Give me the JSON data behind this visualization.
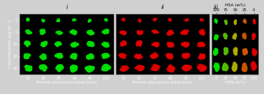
{
  "fig_bg": "#d0d0d0",
  "panel_bg": "#000000",
  "panel_i": {
    "label": "i",
    "rows": 5,
    "cols": 6,
    "color": "#00dd00",
    "x_ticks": [
      "10",
      "20",
      "30",
      "60",
      "90",
      "120"
    ],
    "y_ticks": [
      "1",
      "5",
      "10",
      "20",
      "50"
    ],
    "xlabel": "Protein adsorption time (min)",
    "ylabel": "Concentration (μg.ml⁻¹)",
    "sizes": [
      [
        0.22,
        0.2,
        0.22,
        0.2,
        0.22,
        0.2
      ],
      [
        0.38,
        0.42,
        0.35,
        0.44,
        0.46,
        0.44
      ],
      [
        0.44,
        0.46,
        0.42,
        0.48,
        0.5,
        0.48
      ],
      [
        0.46,
        0.48,
        0.5,
        0.5,
        0.52,
        0.5
      ],
      [
        0.52,
        0.54,
        0.56,
        0.58,
        0.6,
        0.62
      ]
    ],
    "roughness": [
      [
        0.5,
        0.55,
        0.52,
        0.5,
        0.48,
        0.45
      ],
      [
        0.35,
        0.32,
        0.38,
        0.28,
        0.22,
        0.25
      ],
      [
        0.3,
        0.28,
        0.32,
        0.22,
        0.18,
        0.2
      ],
      [
        0.28,
        0.25,
        0.22,
        0.2,
        0.18,
        0.2
      ],
      [
        0.28,
        0.26,
        0.24,
        0.22,
        0.2,
        0.18
      ]
    ]
  },
  "panel_ii": {
    "label": "ii",
    "rows": 5,
    "cols": 6,
    "color": "#dd0000",
    "x_ticks": [
      "10",
      "20",
      "30",
      "60",
      "90",
      "120"
    ],
    "xlabel": "Protein adsorption time (min)",
    "sizes": [
      [
        0.22,
        0.2,
        0.22,
        0.2,
        0.22,
        0.2
      ],
      [
        0.38,
        0.4,
        0.35,
        0.44,
        0.46,
        0.44
      ],
      [
        0.44,
        0.46,
        0.42,
        0.48,
        0.5,
        0.48
      ],
      [
        0.46,
        0.48,
        0.5,
        0.5,
        0.52,
        0.5
      ],
      [
        0.52,
        0.54,
        0.56,
        0.58,
        0.6,
        0.62
      ]
    ],
    "roughness": [
      [
        0.5,
        0.55,
        0.52,
        0.5,
        0.48,
        0.45
      ],
      [
        0.35,
        0.32,
        0.38,
        0.28,
        0.35,
        0.25
      ],
      [
        0.3,
        0.28,
        0.42,
        0.22,
        0.18,
        0.2
      ],
      [
        0.28,
        0.25,
        0.22,
        0.2,
        0.18,
        0.2
      ],
      [
        0.28,
        0.26,
        0.24,
        0.22,
        0.2,
        0.18
      ]
    ]
  },
  "panel_iii": {
    "label": "iii",
    "rows": 4,
    "cols": 5,
    "x_ticks": [
      "0",
      "25",
      "50",
      "75",
      "100"
    ],
    "x_ticks_top": [
      "100",
      "75",
      "50",
      "25",
      "0"
    ],
    "xlabel": "HFN (w%)",
    "xlabel_top": "HSA (w%)",
    "col_colors": [
      "#00dd00",
      "#55bb00",
      "#aaaa00",
      "#cc5500",
      "#dd0000"
    ],
    "sizes": [
      [
        0.3,
        0.3,
        0.3,
        0.3,
        0.3
      ],
      [
        0.42,
        0.42,
        0.42,
        0.42,
        0.42
      ],
      [
        0.52,
        0.52,
        0.52,
        0.52,
        0.52
      ],
      [
        0.62,
        0.62,
        0.62,
        0.62,
        0.62
      ]
    ],
    "roughness": [
      [
        0.35,
        0.35,
        0.35,
        0.35,
        0.35
      ],
      [
        0.25,
        0.25,
        0.25,
        0.25,
        0.25
      ],
      [
        0.22,
        0.22,
        0.22,
        0.22,
        0.22
      ],
      [
        0.2,
        0.2,
        0.2,
        0.2,
        0.2
      ]
    ]
  },
  "tick_fs": 3.8,
  "label_fs": 4.2,
  "panel_label_fs": 6.0
}
